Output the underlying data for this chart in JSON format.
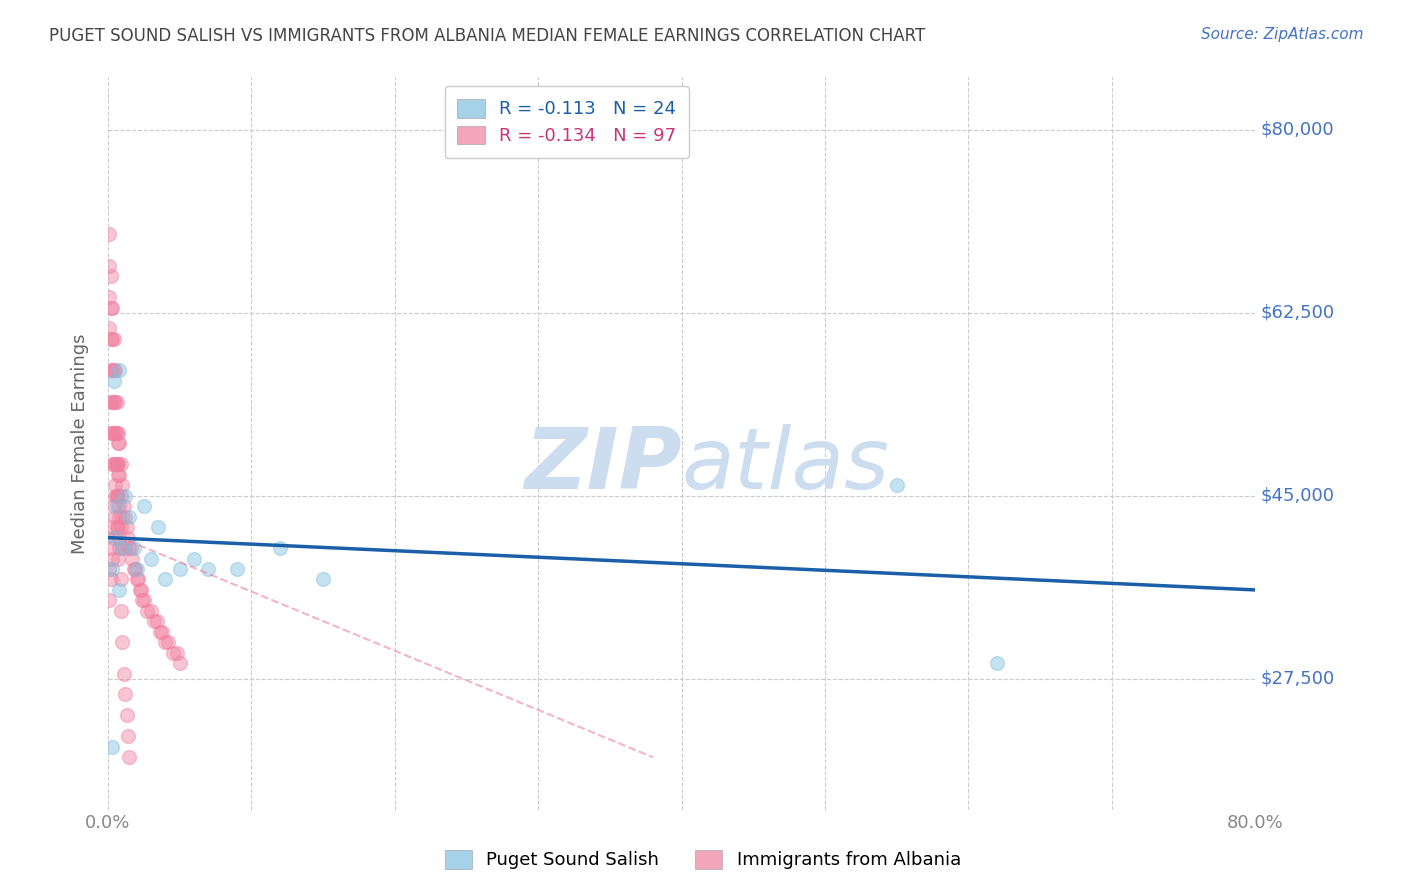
{
  "title": "PUGET SOUND SALISH VS IMMIGRANTS FROM ALBANIA MEDIAN FEMALE EARNINGS CORRELATION CHART",
  "source": "Source: ZipAtlas.com",
  "ylabel": "Median Female Earnings",
  "xlim": [
    0.0,
    0.8
  ],
  "ylim": [
    15000,
    85000
  ],
  "yticks": [
    27500,
    45000,
    62500,
    80000
  ],
  "ytick_labels": [
    "$27,500",
    "$45,000",
    "$62,500",
    "$80,000"
  ],
  "xtick_values": [
    0.0,
    0.1,
    0.2,
    0.3,
    0.4,
    0.5,
    0.6,
    0.7,
    0.8
  ],
  "xtick_labels": [
    "0.0%",
    "",
    "",
    "",
    "",
    "",
    "",
    "",
    "80.0%"
  ],
  "background_color": "#ffffff",
  "grid_color": "#cccccc",
  "title_color": "#444444",
  "source_color": "#4472c4",
  "right_label_color": "#4472c4",
  "blue_color": "#7fbfdf",
  "pink_color": "#f080a0",
  "blue_line_color": "#1a5fa8",
  "pink_line_color": "#f080a0",
  "legend_R_blue": "-0.113",
  "legend_N_blue": "24",
  "legend_R_pink": "-0.134",
  "legend_N_pink": "97",
  "legend_label_blue": "Puget Sound Salish",
  "legend_label_pink": "Immigrants from Albania",
  "blue_scatter_x": [
    0.003,
    0.004,
    0.006,
    0.008,
    0.01,
    0.012,
    0.015,
    0.018,
    0.02,
    0.025,
    0.03,
    0.035,
    0.04,
    0.05,
    0.06,
    0.07,
    0.09,
    0.12,
    0.15,
    0.55,
    0.62,
    0.003,
    0.005,
    0.008
  ],
  "blue_scatter_y": [
    21000,
    56000,
    44000,
    57000,
    40000,
    45000,
    43000,
    40000,
    38000,
    44000,
    39000,
    42000,
    37000,
    38000,
    39000,
    38000,
    38000,
    40000,
    37000,
    46000,
    29000,
    38000,
    41000,
    36000
  ],
  "pink_scatter_x": [
    0.001,
    0.001,
    0.001,
    0.001,
    0.002,
    0.002,
    0.002,
    0.002,
    0.002,
    0.002,
    0.003,
    0.003,
    0.003,
    0.003,
    0.003,
    0.003,
    0.004,
    0.004,
    0.004,
    0.004,
    0.004,
    0.005,
    0.005,
    0.005,
    0.005,
    0.005,
    0.006,
    0.006,
    0.006,
    0.006,
    0.006,
    0.007,
    0.007,
    0.007,
    0.007,
    0.007,
    0.008,
    0.008,
    0.008,
    0.008,
    0.009,
    0.009,
    0.009,
    0.01,
    0.01,
    0.01,
    0.011,
    0.012,
    0.012,
    0.013,
    0.014,
    0.015,
    0.016,
    0.017,
    0.018,
    0.019,
    0.02,
    0.021,
    0.022,
    0.023,
    0.024,
    0.025,
    0.027,
    0.03,
    0.032,
    0.034,
    0.036,
    0.038,
    0.04,
    0.042,
    0.045,
    0.048,
    0.05,
    0.001,
    0.001,
    0.002,
    0.002,
    0.003,
    0.003,
    0.004,
    0.004,
    0.005,
    0.005,
    0.006,
    0.006,
    0.007,
    0.007,
    0.008,
    0.008,
    0.009,
    0.009,
    0.01,
    0.011,
    0.012,
    0.013,
    0.014,
    0.015
  ],
  "pink_scatter_y": [
    70000,
    67000,
    64000,
    61000,
    66000,
    63000,
    60000,
    57000,
    54000,
    51000,
    63000,
    60000,
    57000,
    54000,
    51000,
    48000,
    60000,
    57000,
    54000,
    51000,
    48000,
    57000,
    54000,
    51000,
    48000,
    45000,
    54000,
    51000,
    48000,
    45000,
    42000,
    51000,
    48000,
    45000,
    42000,
    39000,
    50000,
    47000,
    44000,
    41000,
    48000,
    45000,
    42000,
    46000,
    43000,
    40000,
    44000,
    43000,
    40000,
    42000,
    41000,
    40000,
    40000,
    39000,
    38000,
    38000,
    37000,
    37000,
    36000,
    36000,
    35000,
    35000,
    34000,
    34000,
    33000,
    33000,
    32000,
    32000,
    31000,
    31000,
    30000,
    30000,
    29000,
    38000,
    35000,
    40000,
    37000,
    42000,
    39000,
    44000,
    41000,
    46000,
    43000,
    48000,
    45000,
    50000,
    47000,
    43000,
    40000,
    37000,
    34000,
    31000,
    28000,
    26000,
    24000,
    22000,
    20000
  ],
  "blue_trendline_x": [
    0.0,
    0.8
  ],
  "blue_trendline_y": [
    41000,
    36000
  ],
  "pink_trendline_x": [
    0.0,
    0.38
  ],
  "pink_trendline_y": [
    41500,
    20000
  ],
  "watermark_zip": "ZIP",
  "watermark_atlas": "atlas",
  "watermark_color": "#ccddf0",
  "marker_size": 100,
  "marker_alpha": 0.45,
  "marker_linewidth": 1.0
}
